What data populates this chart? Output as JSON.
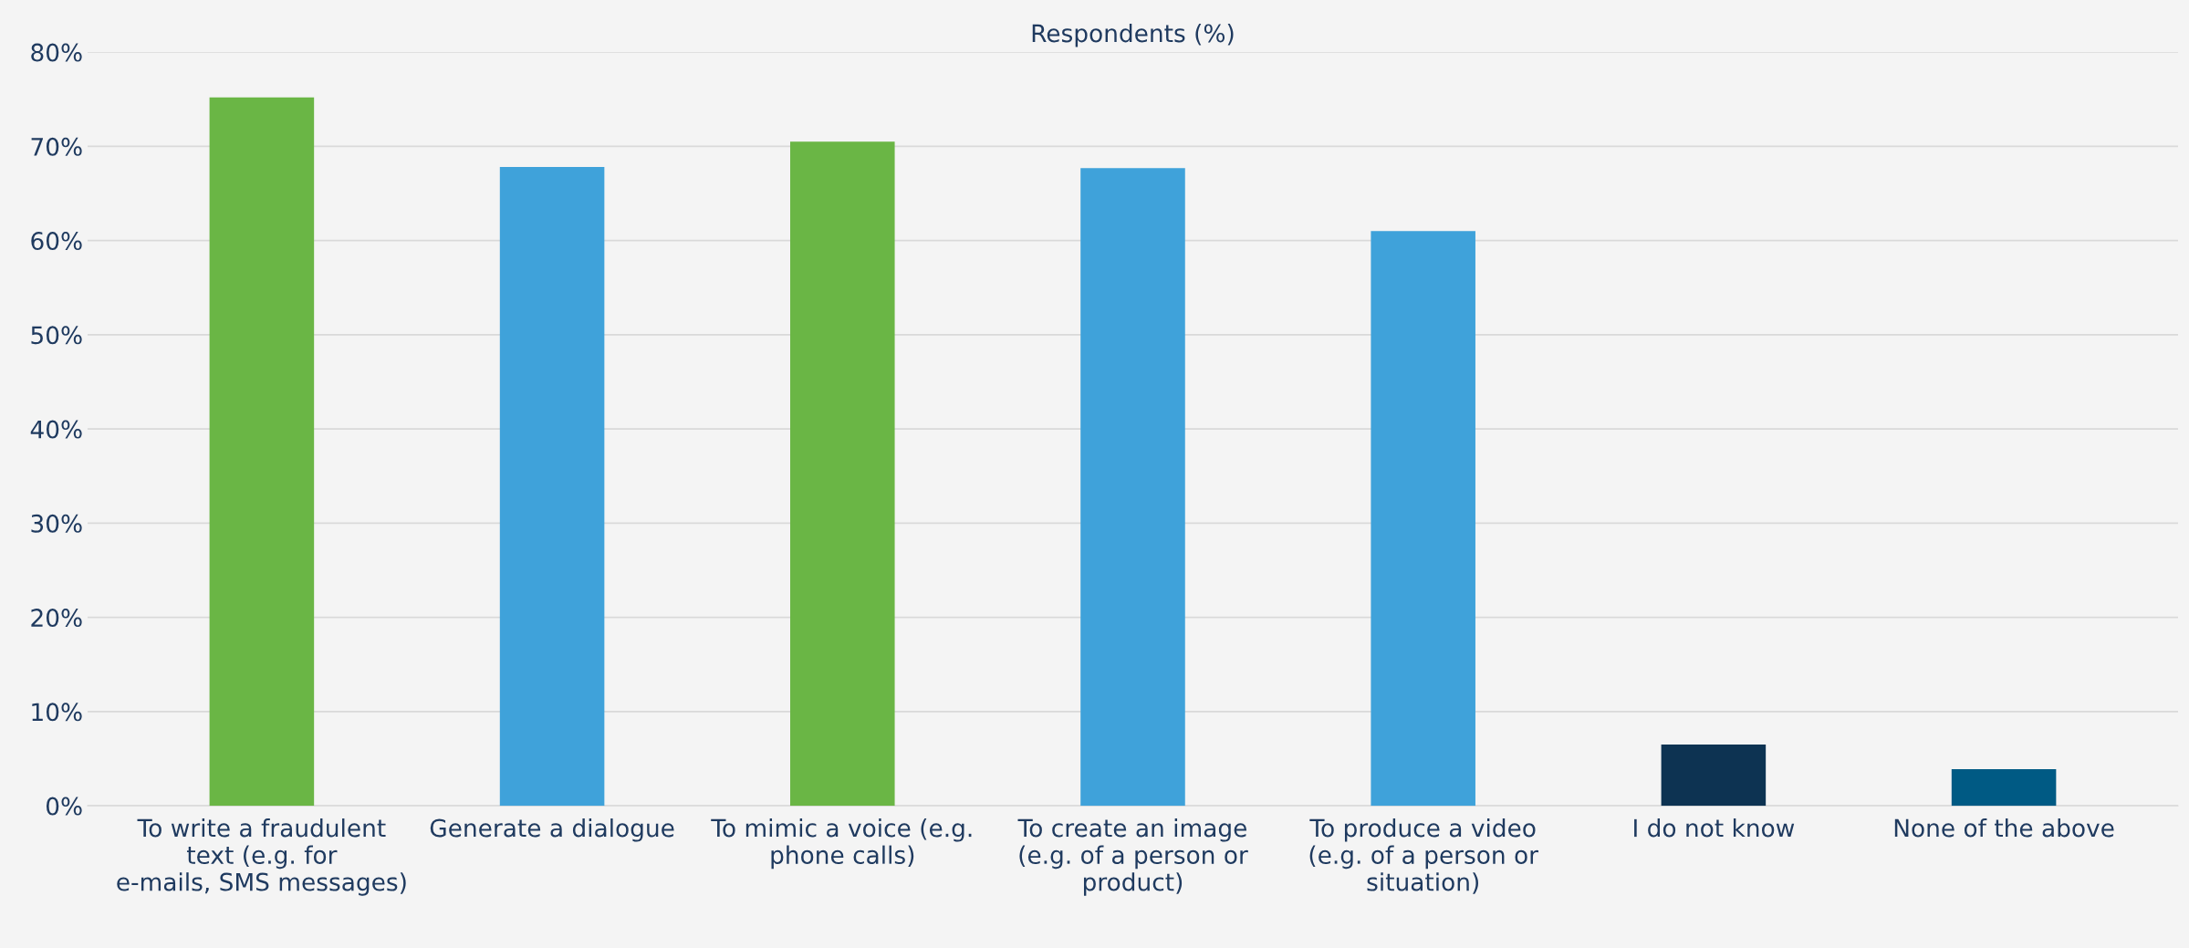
{
  "chart_data": {
    "type": "bar",
    "title": "Respondents (%)",
    "categories": [
      "To write a fraudulent text (e.g. for e-mails, SMS messages)",
      "Generate a dialogue",
      "To mimic a voice (e.g. phone calls)",
      "To create an image (e.g. of a person or product)",
      "To produce a video (e.g. of a person or situation)",
      "I do not know",
      "None of the above"
    ],
    "values": [
      75.2,
      67.8,
      70.5,
      67.7,
      61.0,
      6.5,
      3.9
    ],
    "colors": [
      "#6ab645",
      "#3fa2da",
      "#6ab645",
      "#3fa2da",
      "#3fa2da",
      "#0d3352",
      "#005a84"
    ],
    "ylim": [
      0,
      80
    ],
    "yticks": [
      {
        "value": 0,
        "label": "0%"
      },
      {
        "value": 10,
        "label": "10%"
      },
      {
        "value": 20,
        "label": "20%"
      },
      {
        "value": 30,
        "label": "30%"
      },
      {
        "value": 40,
        "label": "40%"
      },
      {
        "value": 50,
        "label": "50%"
      },
      {
        "value": 60,
        "label": "60%"
      },
      {
        "value": 70,
        "label": "70%"
      },
      {
        "value": 80,
        "label": "80%"
      }
    ],
    "grid": "y"
  }
}
